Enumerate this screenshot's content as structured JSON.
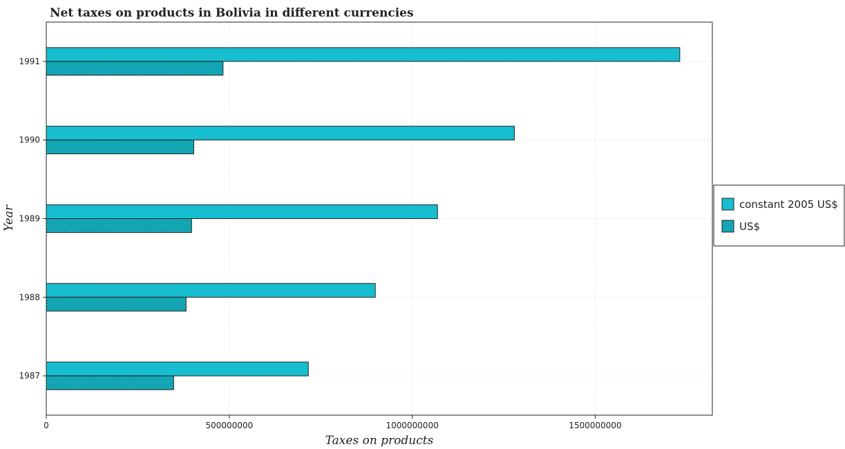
{
  "chart_data": {
    "type": "bar",
    "orientation": "horizontal",
    "title": "Net taxes on products in Bolivia in different currencies",
    "xlabel": "Taxes on products",
    "ylabel": "Year",
    "categories": [
      "1987",
      "1988",
      "1989",
      "1990",
      "1991"
    ],
    "series": [
      {
        "name": "constant 2005 US$",
        "color": "#17becf",
        "values": [
          716000000,
          899000000,
          1069000000,
          1279000000,
          1731000000
        ]
      },
      {
        "name": "US$",
        "color": "#17becf",
        "values": [
          348000000,
          382000000,
          397000000,
          403000000,
          483000000
        ]
      }
    ],
    "xlim": [
      0,
      1820000000
    ],
    "xticks": [
      0,
      500000000,
      1000000000,
      1500000000
    ],
    "xtick_labels": [
      "0",
      "500000000",
      "1000000000",
      "1500000000"
    ],
    "grid": true,
    "legend": "right"
  }
}
